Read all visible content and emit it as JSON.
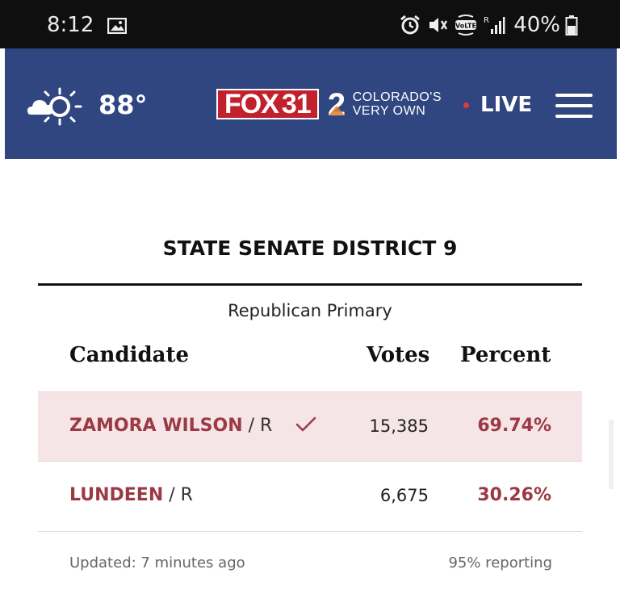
{
  "status_bar": {
    "time": "8:12",
    "battery": "40%",
    "icons": [
      "gallery-icon",
      "alarm-icon",
      "mute-icon",
      "volte-icon",
      "signal-icon",
      "battery-icon"
    ]
  },
  "header": {
    "temperature": "88°",
    "weather_icon": "partly-sunny-icon",
    "logo": {
      "brand": "FOX",
      "number": "31",
      "channel": "2",
      "tagline_line1": "COLORADO'S",
      "tagline_line2": "VERY OWN"
    },
    "live_label": "LIVE",
    "menu_icon": "hamburger-menu-icon",
    "colors": {
      "header_bg": "#2f4680",
      "logo_red": "#c3202d",
      "live_dot": "#e8373c"
    }
  },
  "race": {
    "title": "STATE SENATE DISTRICT 9",
    "primary": "Republican Primary",
    "columns": {
      "candidate": "Candidate",
      "votes": "Votes",
      "percent": "Percent"
    },
    "candidates": [
      {
        "name": "ZAMORA WILSON",
        "party": "/ R",
        "votes": "15,385",
        "percent": "69.74%",
        "winner": true
      },
      {
        "name": "LUNDEEN",
        "party": "/ R",
        "votes": "6,675",
        "percent": "30.26%",
        "winner": false
      }
    ],
    "updated": "Updated: 7 minutes ago",
    "reporting": "95% reporting",
    "colors": {
      "winner_row_bg": "#f6e5e7",
      "accent": "#9c3a44"
    }
  }
}
